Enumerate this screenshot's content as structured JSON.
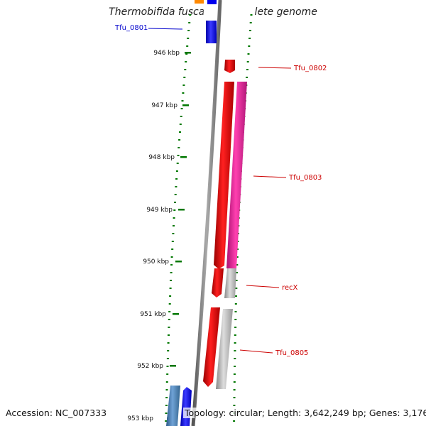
{
  "title": "Thermobifida fusca YX, complete genome",
  "footer": {
    "accession": "Accession: NC_007333",
    "topology": "Topology: circular; Length: 3,642,249 bp; Genes: 3,176"
  },
  "colors": {
    "blue": "#0000ee",
    "red": "#ee0000",
    "pink": "#ee1f9a",
    "gray": "#bbbbbb",
    "steel": "#4a7fb5",
    "orange": "#ff8800",
    "tick_green": "#007700",
    "label_red": "#cc0000",
    "label_blue": "#0000cc"
  },
  "scale": {
    "unit": "kbp",
    "ticks": [
      {
        "label": "946 kbp"
      },
      {
        "label": "947 kbp"
      },
      {
        "label": "948 kbp"
      },
      {
        "label": "949 kbp"
      },
      {
        "label": "950 kbp"
      },
      {
        "label": "951 kbp"
      },
      {
        "label": "952 kbp"
      },
      {
        "label": "953 kbp"
      }
    ]
  },
  "gene_labels": [
    {
      "text": "Tfu_0801",
      "color": "blue"
    },
    {
      "text": "Tfu_0802",
      "color": "red"
    },
    {
      "text": "Tfu_0803",
      "color": "red"
    },
    {
      "text": "recX",
      "color": "red"
    },
    {
      "text": "Tfu_0805",
      "color": "red"
    }
  ]
}
